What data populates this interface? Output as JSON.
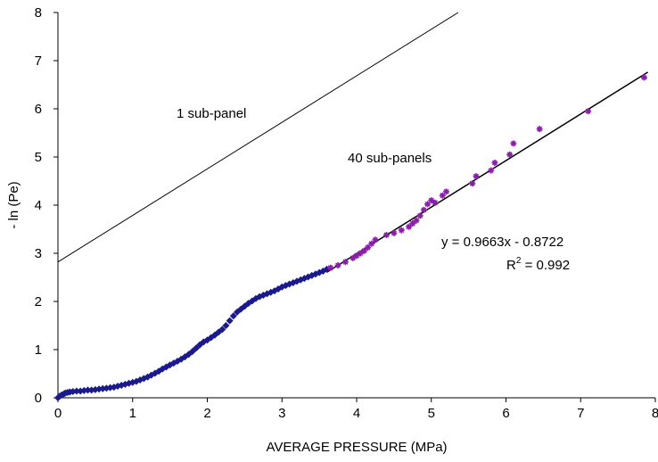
{
  "chart_data": {
    "type": "scatter",
    "xlabel": "AVERAGE PRESSURE (MPa)",
    "ylabel": "- ln (Pe)",
    "xlim": [
      0,
      8
    ],
    "ylim": [
      0,
      8
    ],
    "xticks": [
      "0",
      "1",
      "2",
      "3",
      "4",
      "5",
      "6",
      "7",
      "8"
    ],
    "yticks": [
      "0",
      "1",
      "2",
      "3",
      "4",
      "5",
      "6",
      "7",
      "8"
    ],
    "grid": false,
    "series": [
      {
        "color": "#1a1a8c",
        "marker": "diamond",
        "x": [
          0.0,
          0.02,
          0.05,
          0.08,
          0.1,
          0.13,
          0.16,
          0.2,
          0.25,
          0.3,
          0.35,
          0.4,
          0.45,
          0.5,
          0.55,
          0.6,
          0.65,
          0.7,
          0.75,
          0.8,
          0.85,
          0.9,
          0.95,
          1.0,
          1.05,
          1.1,
          1.15,
          1.2,
          1.25,
          1.3,
          1.35,
          1.4,
          1.45,
          1.5,
          1.55,
          1.6,
          1.65,
          1.7,
          1.75,
          1.8,
          1.85,
          1.9,
          1.95,
          2.0,
          2.05,
          2.1,
          2.15,
          2.2,
          2.25,
          2.3,
          2.35,
          2.4,
          2.45,
          2.5,
          2.55,
          2.6,
          2.65,
          2.7,
          2.75,
          2.8,
          2.85,
          2.9,
          2.95,
          3.0,
          3.05,
          3.1,
          3.15,
          3.2,
          3.25,
          3.3,
          3.35,
          3.4,
          3.45,
          3.5,
          3.55,
          3.6
        ],
        "y": [
          0.0,
          0.03,
          0.06,
          0.08,
          0.1,
          0.11,
          0.12,
          0.13,
          0.14,
          0.14,
          0.15,
          0.16,
          0.16,
          0.17,
          0.18,
          0.19,
          0.2,
          0.21,
          0.22,
          0.24,
          0.26,
          0.28,
          0.3,
          0.32,
          0.34,
          0.37,
          0.4,
          0.43,
          0.47,
          0.51,
          0.55,
          0.6,
          0.64,
          0.68,
          0.72,
          0.76,
          0.8,
          0.85,
          0.9,
          0.96,
          1.03,
          1.1,
          1.16,
          1.2,
          1.25,
          1.3,
          1.36,
          1.42,
          1.5,
          1.6,
          1.7,
          1.78,
          1.84,
          1.9,
          1.96,
          2.01,
          2.06,
          2.1,
          2.13,
          2.16,
          2.19,
          2.22,
          2.26,
          2.3,
          2.33,
          2.36,
          2.39,
          2.42,
          2.45,
          2.48,
          2.51,
          2.54,
          2.57,
          2.6,
          2.63,
          2.67
        ]
      },
      {
        "color": "#8a1fa8",
        "marker": "star",
        "x": [
          3.65,
          3.75,
          3.85,
          3.95,
          4.0,
          4.05,
          4.1,
          4.15,
          4.2,
          4.25,
          4.4,
          4.5,
          4.6,
          4.7,
          4.75,
          4.8,
          4.85,
          4.9,
          4.95,
          5.0,
          5.05,
          5.15,
          5.2,
          5.55,
          5.6,
          5.8,
          5.85,
          6.05,
          6.1,
          6.45,
          7.1,
          7.85
        ],
        "y": [
          2.7,
          2.75,
          2.82,
          2.9,
          2.95,
          3.0,
          3.05,
          3.12,
          3.2,
          3.28,
          3.38,
          3.42,
          3.48,
          3.55,
          3.62,
          3.68,
          3.78,
          3.9,
          4.02,
          4.1,
          4.05,
          4.2,
          4.28,
          4.45,
          4.6,
          4.72,
          4.88,
          5.05,
          5.28,
          5.58,
          5.95,
          6.65
        ]
      }
    ],
    "lines": [
      {
        "name": "1 sub-panel",
        "slope": 0.9663,
        "intercept": 2.82,
        "color": "#000000",
        "width": 1
      },
      {
        "name": "40 sub-panels",
        "slope": 0.9663,
        "intercept": -0.8722,
        "x_from": 3.6,
        "x_to": 7.9,
        "color": "#000000",
        "width": 1.5
      }
    ],
    "annotations": {
      "label_1": "1 sub-panel",
      "label_40": "40 sub-panels",
      "equation": "y = 0.9663x - 0.8722",
      "r2_prefix": "R",
      "r2_sup": "2",
      "r2_suffix": " = 0.992"
    }
  }
}
